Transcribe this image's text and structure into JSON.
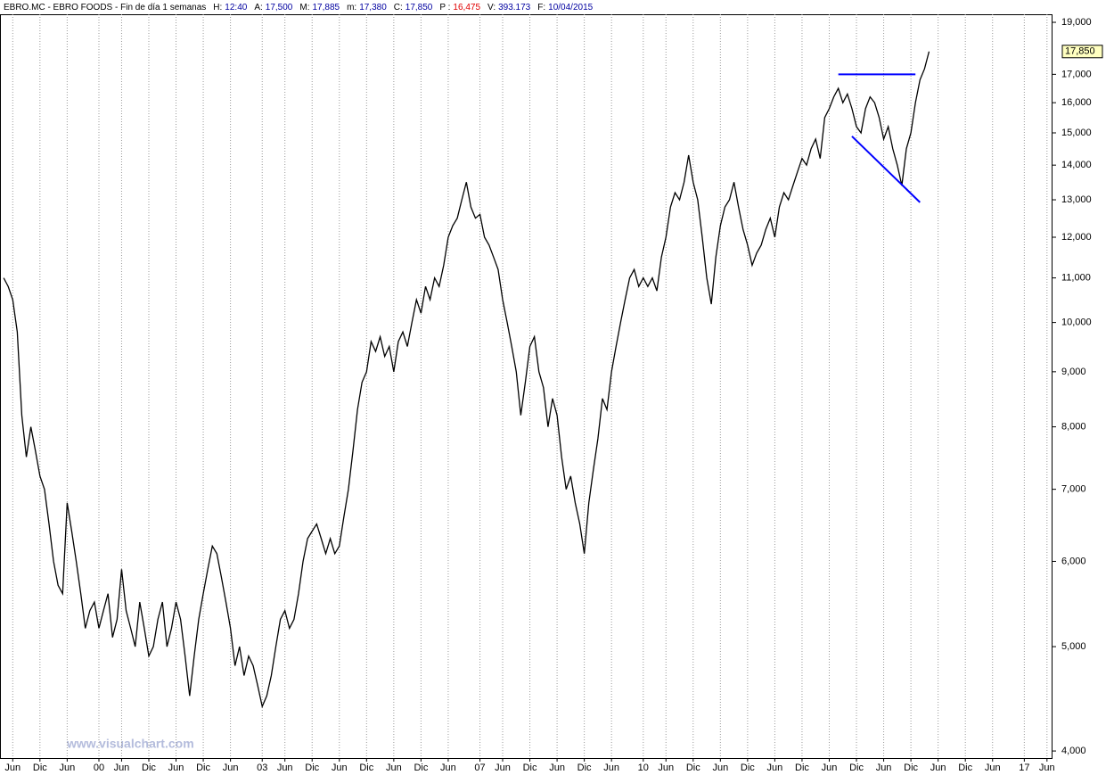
{
  "chart_data": {
    "type": "line",
    "title": "EBRO.MC - EBRO FOODS - Fin de día 1 semanas",
    "header": [
      {
        "label": "H:",
        "value": "12:40",
        "color": "#0000a0"
      },
      {
        "label": "A:",
        "value": "17,500",
        "color": "#0000a0"
      },
      {
        "label": "M:",
        "value": "17,885",
        "color": "#0000a0"
      },
      {
        "label": "m:",
        "value": "17,380",
        "color": "#0000a0"
      },
      {
        "label": "C:",
        "value": "17,850",
        "color": "#0000a0"
      },
      {
        "label": "P :",
        "value": "16,475",
        "color": "#e00000"
      },
      {
        "label": "V:",
        "value": "393.173",
        "color": "#0000a0"
      },
      {
        "label": "F:",
        "value": "10/04/2015",
        "color": "#0000a0"
      }
    ],
    "watermark": "www.visualchart.com",
    "log_scale": true,
    "grid": true,
    "ylim": [
      3.94,
      19.33
    ],
    "yticks": [
      {
        "value": 4,
        "label": "4,000"
      },
      {
        "value": 5,
        "label": "5,000"
      },
      {
        "value": 6,
        "label": "6,000"
      },
      {
        "value": 7,
        "label": "7,000"
      },
      {
        "value": 8,
        "label": "8,000"
      },
      {
        "value": 9,
        "label": "9,000"
      },
      {
        "value": 10,
        "label": "10,000"
      },
      {
        "value": 11,
        "label": "11,000"
      },
      {
        "value": 12,
        "label": "12,000"
      },
      {
        "value": 13,
        "label": "13,000"
      },
      {
        "value": 14,
        "label": "14,000"
      },
      {
        "value": 15,
        "label": "15,000"
      },
      {
        "value": 16,
        "label": "16,000"
      },
      {
        "value": 17,
        "label": "17,000"
      },
      {
        "value": 19,
        "label": "19,000"
      }
    ],
    "xticks": [
      {
        "value": "1998-06",
        "label": "Jun"
      },
      {
        "value": "1998-12",
        "label": "Dic"
      },
      {
        "value": "1999-06",
        "label": "Jun"
      },
      {
        "value": "2000-01",
        "label": "00"
      },
      {
        "value": "2000-06",
        "label": "Jun"
      },
      {
        "value": "2000-12",
        "label": "Dic"
      },
      {
        "value": "2001-06",
        "label": "Jun"
      },
      {
        "value": "2001-12",
        "label": "Dic"
      },
      {
        "value": "2002-06",
        "label": "Jun"
      },
      {
        "value": "2003-01",
        "label": "03"
      },
      {
        "value": "2003-06",
        "label": "Jun"
      },
      {
        "value": "2003-12",
        "label": "Dic"
      },
      {
        "value": "2004-06",
        "label": "Jun"
      },
      {
        "value": "2004-12",
        "label": "Dic"
      },
      {
        "value": "2005-06",
        "label": "Jun"
      },
      {
        "value": "2005-12",
        "label": "Dic"
      },
      {
        "value": "2006-06",
        "label": "Jun"
      },
      {
        "value": "2007-01",
        "label": "07"
      },
      {
        "value": "2007-06",
        "label": "Jun"
      },
      {
        "value": "2007-12",
        "label": "Dic"
      },
      {
        "value": "2008-06",
        "label": "Jun"
      },
      {
        "value": "2008-12",
        "label": "Dic"
      },
      {
        "value": "2009-06",
        "label": "Jun"
      },
      {
        "value": "2010-01",
        "label": "10"
      },
      {
        "value": "2010-06",
        "label": "Jun"
      },
      {
        "value": "2010-12",
        "label": "Dic"
      },
      {
        "value": "2011-06",
        "label": "Jun"
      },
      {
        "value": "2011-12",
        "label": "Dic"
      },
      {
        "value": "2012-06",
        "label": "Jun"
      },
      {
        "value": "2012-12",
        "label": "Dic"
      },
      {
        "value": "2013-06",
        "label": "Jun"
      },
      {
        "value": "2013-12",
        "label": "Dic"
      },
      {
        "value": "2014-06",
        "label": "Jun"
      },
      {
        "value": "2014-12",
        "label": "Dic"
      },
      {
        "value": "2015-06",
        "label": "Jun"
      },
      {
        "value": "2015-12",
        "label": "Dic"
      },
      {
        "value": "2016-06",
        "label": "Jun"
      },
      {
        "value": "2017-01",
        "label": "17"
      },
      {
        "value": "2017-06",
        "label": "Jun"
      }
    ],
    "x": [
      "1998-04",
      "1998-05",
      "1998-06",
      "1998-07",
      "1998-08",
      "1998-09",
      "1998-10",
      "1998-11",
      "1998-12",
      "1999-01",
      "1999-02",
      "1999-03",
      "1999-04",
      "1999-05",
      "1999-06",
      "1999-07",
      "1999-08",
      "1999-09",
      "1999-10",
      "1999-11",
      "1999-12",
      "2000-01",
      "2000-02",
      "2000-03",
      "2000-04",
      "2000-05",
      "2000-06",
      "2000-07",
      "2000-08",
      "2000-09",
      "2000-10",
      "2000-11",
      "2000-12",
      "2001-01",
      "2001-02",
      "2001-03",
      "2001-04",
      "2001-05",
      "2001-06",
      "2001-07",
      "2001-08",
      "2001-09",
      "2001-10",
      "2001-11",
      "2001-12",
      "2002-01",
      "2002-02",
      "2002-03",
      "2002-04",
      "2002-05",
      "2002-06",
      "2002-07",
      "2002-08",
      "2002-09",
      "2002-10",
      "2002-11",
      "2002-12",
      "2003-01",
      "2003-02",
      "2003-03",
      "2003-04",
      "2003-05",
      "2003-06",
      "2003-07",
      "2003-08",
      "2003-09",
      "2003-10",
      "2003-11",
      "2003-12",
      "2004-01",
      "2004-02",
      "2004-03",
      "2004-04",
      "2004-05",
      "2004-06",
      "2004-07",
      "2004-08",
      "2004-09",
      "2004-10",
      "2004-11",
      "2004-12",
      "2005-01",
      "2005-02",
      "2005-03",
      "2005-04",
      "2005-05",
      "2005-06",
      "2005-07",
      "2005-08",
      "2005-09",
      "2005-10",
      "2005-11",
      "2005-12",
      "2006-01",
      "2006-02",
      "2006-03",
      "2006-04",
      "2006-05",
      "2006-06",
      "2006-07",
      "2006-08",
      "2006-09",
      "2006-10",
      "2006-11",
      "2006-12",
      "2007-01",
      "2007-02",
      "2007-03",
      "2007-04",
      "2007-05",
      "2007-06",
      "2007-07",
      "2007-08",
      "2007-09",
      "2007-10",
      "2007-11",
      "2007-12",
      "2008-01",
      "2008-02",
      "2008-03",
      "2008-04",
      "2008-05",
      "2008-06",
      "2008-07",
      "2008-08",
      "2008-09",
      "2008-10",
      "2008-11",
      "2008-12",
      "2009-01",
      "2009-02",
      "2009-03",
      "2009-04",
      "2009-05",
      "2009-06",
      "2009-07",
      "2009-08",
      "2009-09",
      "2009-10",
      "2009-11",
      "2009-12",
      "2010-01",
      "2010-02",
      "2010-03",
      "2010-04",
      "2010-05",
      "2010-06",
      "2010-07",
      "2010-08",
      "2010-09",
      "2010-10",
      "2010-11",
      "2010-12",
      "2011-01",
      "2011-02",
      "2011-03",
      "2011-04",
      "2011-05",
      "2011-06",
      "2011-07",
      "2011-08",
      "2011-09",
      "2011-10",
      "2011-11",
      "2011-12",
      "2012-01",
      "2012-02",
      "2012-03",
      "2012-04",
      "2012-05",
      "2012-06",
      "2012-07",
      "2012-08",
      "2012-09",
      "2012-10",
      "2012-11",
      "2012-12",
      "2013-01",
      "2013-02",
      "2013-03",
      "2013-04",
      "2013-05",
      "2013-06",
      "2013-07",
      "2013-08",
      "2013-09",
      "2013-10",
      "2013-11",
      "2013-12",
      "2014-01",
      "2014-02",
      "2014-03",
      "2014-04",
      "2014-05",
      "2014-06",
      "2014-07",
      "2014-08",
      "2014-09",
      "2014-10",
      "2014-11",
      "2014-12",
      "2015-01",
      "2015-02",
      "2015-03",
      "2015-04"
    ],
    "series": [
      {
        "color": "#000000",
        "values": [
          11.0,
          10.8,
          10.5,
          9.8,
          8.2,
          7.5,
          8.0,
          7.6,
          7.2,
          7.0,
          6.5,
          6.0,
          5.7,
          5.6,
          6.8,
          6.4,
          6.0,
          5.6,
          5.2,
          5.4,
          5.5,
          5.2,
          5.4,
          5.6,
          5.1,
          5.3,
          5.9,
          5.4,
          5.2,
          5.0,
          5.5,
          5.2,
          4.9,
          5.0,
          5.3,
          5.5,
          5.0,
          5.2,
          5.5,
          5.3,
          4.9,
          4.5,
          4.9,
          5.3,
          5.6,
          5.9,
          6.2,
          6.1,
          5.8,
          5.5,
          5.2,
          4.8,
          5.0,
          4.7,
          4.9,
          4.8,
          4.6,
          4.4,
          4.5,
          4.7,
          5.0,
          5.3,
          5.4,
          5.2,
          5.3,
          5.6,
          6.0,
          6.3,
          6.4,
          6.5,
          6.3,
          6.1,
          6.3,
          6.1,
          6.2,
          6.6,
          7.0,
          7.6,
          8.3,
          8.8,
          9.0,
          9.6,
          9.4,
          9.7,
          9.3,
          9.5,
          9.0,
          9.6,
          9.8,
          9.5,
          10.0,
          10.5,
          10.2,
          10.8,
          10.5,
          11.0,
          10.8,
          11.3,
          12.0,
          12.3,
          12.5,
          13.0,
          13.5,
          12.8,
          12.5,
          12.6,
          12.0,
          11.8,
          11.5,
          11.2,
          10.5,
          10.0,
          9.5,
          9.0,
          8.2,
          8.8,
          9.5,
          9.7,
          9.0,
          8.7,
          8.0,
          8.5,
          8.2,
          7.5,
          7.0,
          7.2,
          6.8,
          6.5,
          6.1,
          6.8,
          7.3,
          7.8,
          8.5,
          8.3,
          9.0,
          9.5,
          10.0,
          10.5,
          11.0,
          11.2,
          10.8,
          11.0,
          10.8,
          11.0,
          10.7,
          11.5,
          12.0,
          12.8,
          13.2,
          13.0,
          13.5,
          14.3,
          13.5,
          13.0,
          12.0,
          11.0,
          10.4,
          11.5,
          12.3,
          12.8,
          13.0,
          13.5,
          12.8,
          12.2,
          11.8,
          11.3,
          11.6,
          11.8,
          12.2,
          12.5,
          12.0,
          12.8,
          13.2,
          13.0,
          13.4,
          13.8,
          14.2,
          14.0,
          14.5,
          14.8,
          14.2,
          15.5,
          15.8,
          16.2,
          16.5,
          16.0,
          16.3,
          15.8,
          15.2,
          15.0,
          15.8,
          16.2,
          16.0,
          15.5,
          14.8,
          15.2,
          14.5,
          14.0,
          13.4,
          14.5,
          15.0,
          16.0,
          16.8,
          17.2,
          17.85
        ]
      }
    ],
    "trendlines": [
      {
        "color": "#0000ff",
        "x": [
          "2013-08",
          "2015-01"
        ],
        "values": [
          17.0,
          17.0
        ]
      },
      {
        "color": "#0000ff",
        "x": [
          "2013-11",
          "2015-02"
        ],
        "values": [
          14.89,
          12.93
        ]
      }
    ],
    "last_price": {
      "value": 17.85,
      "label": "17,850"
    }
  }
}
